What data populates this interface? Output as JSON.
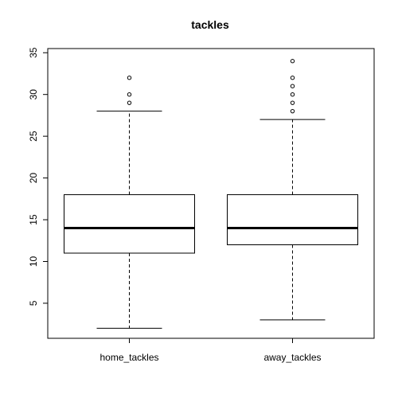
{
  "chart_data": {
    "type": "boxplot",
    "title": "tackles",
    "xlabel": "",
    "ylabel": "",
    "ylim": [
      0.8,
      35.5
    ],
    "yticks": [
      5,
      10,
      15,
      20,
      25,
      30,
      35
    ],
    "grid": false,
    "legend": "none",
    "categories": [
      "home_tackles",
      "away_tackles"
    ],
    "boxes": [
      {
        "name": "home_tackles",
        "whisker_low": 2,
        "q1": 11,
        "median": 14,
        "q3": 18,
        "whisker_high": 28,
        "outliers": [
          29,
          30,
          32
        ]
      },
      {
        "name": "away_tackles",
        "whisker_low": 3,
        "q1": 12,
        "median": 14,
        "q3": 18,
        "whisker_high": 27,
        "outliers": [
          28,
          29,
          30,
          31,
          32,
          34
        ]
      }
    ]
  }
}
